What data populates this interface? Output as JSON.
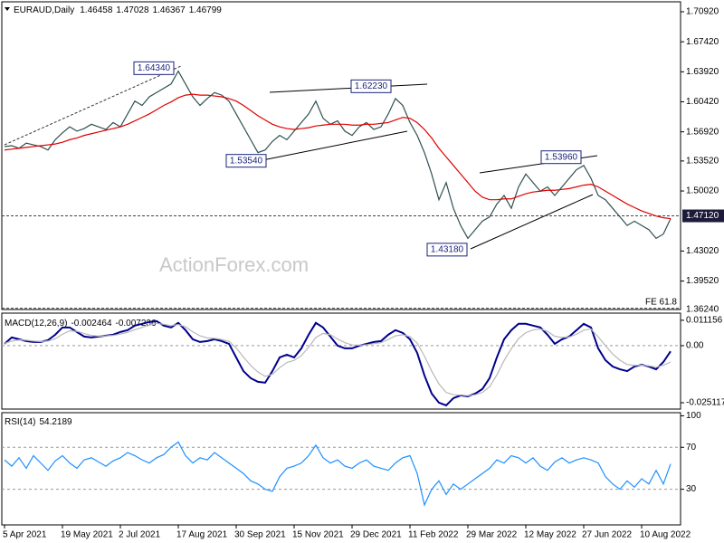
{
  "chart_data": [
    {
      "type": "line",
      "title": "EURAUD,Daily",
      "readout": [
        1.46458,
        1.47028,
        1.46367,
        1.46799
      ],
      "watermark": "ActionForex.com",
      "categories": [
        "5 Apr 2021",
        null,
        null,
        null,
        null,
        null,
        null,
        null,
        "19 May 2021",
        null,
        null,
        null,
        null,
        null,
        null,
        null,
        "2 Jul 2021",
        null,
        null,
        null,
        null,
        null,
        null,
        null,
        "17 Aug 2021",
        null,
        null,
        null,
        null,
        null,
        null,
        null,
        "30 Sep 2021",
        null,
        null,
        null,
        null,
        null,
        null,
        null,
        "15 Nov 2021",
        null,
        null,
        null,
        null,
        null,
        null,
        null,
        "29 Dec 2021",
        null,
        null,
        null,
        null,
        null,
        null,
        null,
        "11 Feb 2022",
        null,
        null,
        null,
        null,
        null,
        null,
        null,
        "29 Mar 2022",
        null,
        null,
        null,
        null,
        null,
        null,
        null,
        "12 May 2022",
        null,
        null,
        null,
        null,
        null,
        null,
        null,
        "27 Jun 2022",
        null,
        null,
        null,
        null,
        null,
        null,
        null,
        "10 Aug 2022",
        null,
        null,
        null,
        null
      ],
      "series": [
        {
          "color": "#2f4f4f",
          "values": [
            1.552,
            1.553,
            1.55,
            1.556,
            1.554,
            1.552,
            1.548,
            1.56,
            1.568,
            1.575,
            1.57,
            1.573,
            1.578,
            1.575,
            1.572,
            1.58,
            1.575,
            1.59,
            1.605,
            1.6,
            1.61,
            1.615,
            1.62,
            1.625,
            1.64,
            1.625,
            1.61,
            1.6,
            1.608,
            1.615,
            1.612,
            1.605,
            1.59,
            1.575,
            1.56,
            1.545,
            1.548,
            1.558,
            1.565,
            1.56,
            1.57,
            1.58,
            1.59,
            1.605,
            1.585,
            1.578,
            1.582,
            1.57,
            1.565,
            1.575,
            1.58,
            1.572,
            1.575,
            1.59,
            1.608,
            1.6,
            1.58,
            1.565,
            1.545,
            1.52,
            1.49,
            1.51,
            1.48,
            1.46,
            1.445,
            1.455,
            1.465,
            1.47,
            1.485,
            1.495,
            1.48,
            1.505,
            1.52,
            1.51,
            1.5,
            1.505,
            1.495,
            1.505,
            1.515,
            1.525,
            1.53,
            1.515,
            1.495,
            1.49,
            1.48,
            1.47,
            1.46,
            1.465,
            1.46,
            1.455,
            1.445,
            1.45,
            1.468
          ]
        },
        {
          "color": "#e00000",
          "values": [
            1.548,
            1.549,
            1.55,
            1.551,
            1.552,
            1.553,
            1.554,
            1.555,
            1.557,
            1.56,
            1.562,
            1.565,
            1.567,
            1.569,
            1.571,
            1.573,
            1.575,
            1.578,
            1.582,
            1.586,
            1.59,
            1.595,
            1.6,
            1.604,
            1.609,
            1.612,
            1.613,
            1.612,
            1.612,
            1.611,
            1.61,
            1.608,
            1.605,
            1.6,
            1.594,
            1.588,
            1.583,
            1.578,
            1.575,
            1.573,
            1.572,
            1.573,
            1.574,
            1.576,
            1.577,
            1.578,
            1.578,
            1.578,
            1.577,
            1.577,
            1.578,
            1.578,
            1.579,
            1.58,
            1.583,
            1.586,
            1.585,
            1.58,
            1.572,
            1.562,
            1.55,
            1.54,
            1.53,
            1.52,
            1.51,
            1.5,
            1.493,
            1.49,
            1.49,
            1.491,
            1.491,
            1.494,
            1.497,
            1.499,
            1.5,
            1.501,
            1.501,
            1.502,
            1.503,
            1.505,
            1.507,
            1.508,
            1.505,
            1.5,
            1.495,
            1.49,
            1.485,
            1.481,
            1.477,
            1.474,
            1.471,
            1.469,
            1.468
          ]
        }
      ],
      "ylim": [
        1.362,
        1.7208
      ],
      "yticks": [
        {
          "value": 1.7092,
          "label": "1.70920"
        },
        {
          "value": 1.6742,
          "label": "1.67420"
        },
        {
          "value": 1.6392,
          "label": "1.63920"
        },
        {
          "value": 1.6042,
          "label": "1.60420"
        },
        {
          "value": 1.5692,
          "label": "1.56920"
        },
        {
          "value": 1.5352,
          "label": "1.53520"
        },
        {
          "value": 1.5002,
          "label": "1.50020"
        },
        {
          "value": 1.4302,
          "label": "1.43020"
        },
        {
          "value": 1.3952,
          "label": "1.39520"
        }
      ],
      "price_line": {
        "value": 1.4712,
        "label": "1.47120"
      },
      "fe_line": {
        "name": "FE 61.8",
        "value": 1.3624,
        "label": "1.36240"
      },
      "annotations": [
        {
          "value": 1.6434,
          "label": "1.64340"
        },
        {
          "value": 1.6223,
          "label": "1.62230"
        },
        {
          "value": 1.5354,
          "label": "1.53540"
        },
        {
          "value": 1.4318,
          "label": "1.43180"
        },
        {
          "value": 1.5396,
          "label": "1.53960"
        }
      ]
    },
    {
      "type": "line",
      "title": "MACD(12,26,9)",
      "readout": [
        -0.002464,
        -0.007236
      ],
      "series": [
        {
          "color": "#00008b",
          "values": [
            0.0008,
            0.0036,
            0.0028,
            0.002,
            0.0016,
            0.0016,
            0.0024,
            0.0048,
            0.008,
            0.008,
            0.006,
            0.004,
            0.0036,
            0.004,
            0.0044,
            0.0048,
            0.006,
            0.0068,
            0.0088,
            0.0096,
            0.0104,
            0.0108,
            0.0088,
            0.008,
            0.01,
            0.0068,
            0.0028,
            0.0016,
            0.002,
            0.0028,
            0.002,
            0.0008,
            -0.0052,
            -0.0112,
            -0.0143,
            -0.0159,
            -0.0163,
            -0.0112,
            -0.0052,
            -0.004,
            -0.0052,
            -0.0012,
            0.0048,
            0.01,
            0.008,
            0.004,
            0,
            -0.0012,
            -0.0012,
            0,
            0.0008,
            0.0016,
            0.002,
            0.0048,
            0.0068,
            0.0056,
            0.0028,
            -0.0032,
            -0.0131,
            -0.0211,
            -0.0251,
            -0.0263,
            -0.0231,
            -0.0219,
            -0.0223,
            -0.0211,
            -0.0191,
            -0.0143,
            -0.0052,
            0.0028,
            0.0068,
            0.0096,
            0.0096,
            0.0088,
            0.008,
            0.0048,
            0.0008,
            0.0028,
            0.004,
            0.0068,
            0.0096,
            0.008,
            -0.0012,
            -0.0064,
            -0.0092,
            -0.0104,
            -0.0112,
            -0.0092,
            -0.0084,
            -0.0092,
            -0.0104,
            -0.0072,
            -0.0025
          ]
        },
        {
          "color": "#b8b8b8",
          "values": [
            0.001,
            0.002,
            0.0025,
            0.0024,
            0.002,
            0.0018,
            0.002,
            0.003,
            0.005,
            0.0065,
            0.0063,
            0.0053,
            0.0045,
            0.0042,
            0.0043,
            0.0045,
            0.0051,
            0.0058,
            0.007,
            0.008,
            0.009,
            0.0098,
            0.0094,
            0.0088,
            0.0093,
            0.0083,
            0.0061,
            0.0043,
            0.0034,
            0.0032,
            0.0027,
            0.0019,
            -0.001,
            -0.005,
            -0.0087,
            -0.0116,
            -0.0135,
            -0.0126,
            -0.0097,
            -0.0074,
            -0.0065,
            -0.0044,
            -0.0007,
            0.0036,
            0.0054,
            0.0048,
            0.0029,
            0.0013,
            0.0003,
            0.0002,
            0.0004,
            0.0009,
            0.0013,
            0.0027,
            0.0043,
            0.0048,
            0.004,
            0.0011,
            -0.0046,
            -0.0112,
            -0.0168,
            -0.0206,
            -0.0216,
            -0.0218,
            -0.022,
            -0.0216,
            -0.0206,
            -0.0181,
            -0.0129,
            -0.0066,
            -0.0013,
            0.0031,
            0.0057,
            0.0069,
            0.0073,
            0.0063,
            0.0041,
            0.0036,
            0.0038,
            0.005,
            0.0068,
            0.0073,
            0.0039,
            0,
            -0.0037,
            -0.0064,
            -0.0083,
            -0.0087,
            -0.0086,
            -0.0089,
            -0.0095,
            -0.0086,
            -0.0072
          ]
        }
      ],
      "ylim": [
        -0.0279,
        0.0143
      ],
      "yticks": [
        0.011156,
        {
          "value": 0,
          "label": "0.00"
        },
        -0.025117
      ],
      "levels": [
        0
      ]
    },
    {
      "type": "line",
      "title": "RSI(14)",
      "readout": [
        54.2189
      ],
      "series": [
        {
          "color": "#1e90ff",
          "values": [
            58,
            52,
            60,
            50,
            62,
            55,
            48,
            57,
            62,
            55,
            50,
            58,
            60,
            56,
            52,
            57,
            60,
            65,
            62,
            58,
            55,
            60,
            63,
            70,
            75,
            62,
            55,
            60,
            58,
            65,
            60,
            55,
            50,
            45,
            38,
            35,
            30,
            28,
            42,
            50,
            52,
            55,
            62,
            72,
            60,
            55,
            58,
            52,
            50,
            55,
            58,
            52,
            50,
            48,
            55,
            60,
            62,
            45,
            15,
            30,
            38,
            25,
            35,
            30,
            35,
            40,
            45,
            50,
            58,
            55,
            62,
            60,
            55,
            60,
            52,
            48,
            56,
            60,
            55,
            58,
            60,
            58,
            55,
            42,
            35,
            30,
            38,
            32,
            40,
            35,
            48,
            35,
            54.2
          ]
        }
      ],
      "ylim": [
        -4,
        103
      ],
      "yticks": [
        100,
        70,
        30
      ],
      "levels": [
        70,
        30
      ]
    }
  ]
}
